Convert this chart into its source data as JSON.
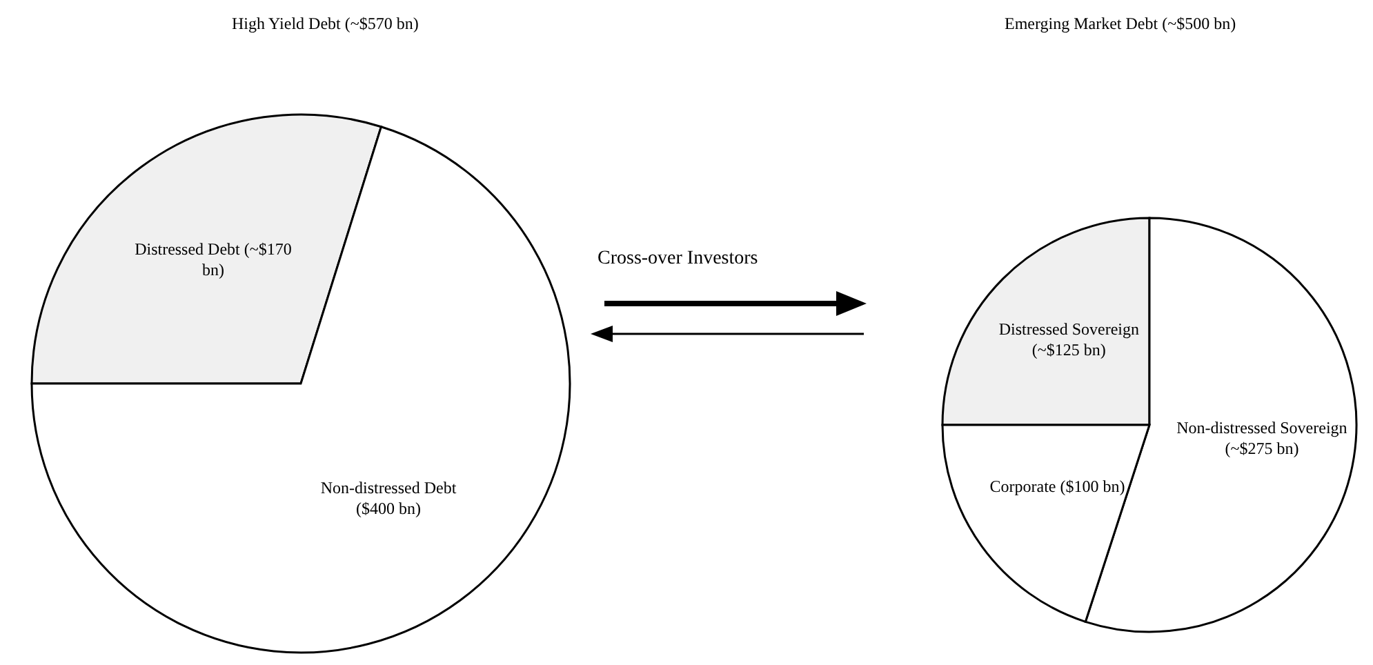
{
  "chart_data": [
    {
      "type": "pie",
      "title": "High Yield Debt (~$570 bn)",
      "categories": [
        "Distressed Debt (~$170 bn)",
        "Non-distressed Debt ($400 bn)"
      ],
      "values": [
        170,
        400
      ],
      "colors": [
        "#f0f0f0",
        "#ffffff"
      ],
      "annotations": [
        "Cross-over Investors"
      ]
    },
    {
      "type": "pie",
      "title": "Emerging Market Debt (~$500 bn)",
      "categories": [
        "Distressed Sovereign (~$125 bn)",
        "Non-distressed Sovereign (~$275 bn)",
        "Corporate ($100 bn)"
      ],
      "values": [
        125,
        275,
        100
      ],
      "colors": [
        "#f0f0f0",
        "#ffffff",
        "#ffffff"
      ]
    }
  ]
}
